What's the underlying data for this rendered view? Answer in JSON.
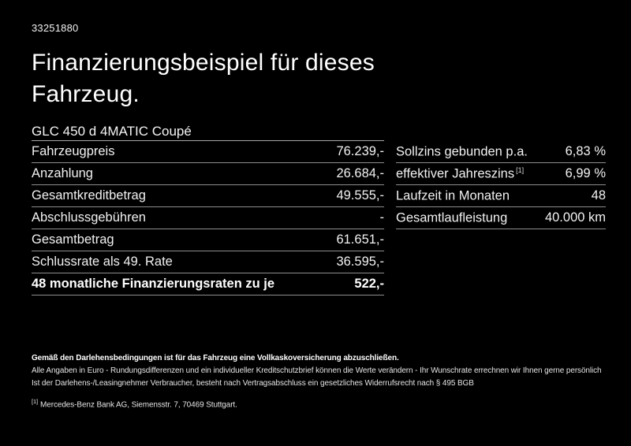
{
  "page": {
    "background_color": "#000000",
    "text_color": "#ffffff",
    "separator_color": "#8e8e8e"
  },
  "header": {
    "id_number": "33251880",
    "title_line1": "Finanzierungsbeispiel für dieses",
    "title_line2": "Fahrzeug."
  },
  "vehicle": {
    "model": "GLC 450 d 4MATIC Coupé"
  },
  "finance_table": {
    "rows": [
      {
        "label": "Fahrzeugpreis",
        "value": "76.239,-"
      },
      {
        "label": "Anzahlung",
        "value": "26.684,-"
      },
      {
        "label": "Gesamtkreditbetrag",
        "value": "49.555,-"
      },
      {
        "label": "Abschlussgebühren",
        "value": "-"
      },
      {
        "label": "Gesamtbetrag",
        "value": "61.651,-"
      },
      {
        "label": "Schlussrate als 49. Rate",
        "value": "36.595,-"
      },
      {
        "label": "48 monatliche Finanzierungsraten zu je",
        "value": "522,-"
      }
    ]
  },
  "conditions_table": {
    "rows": [
      {
        "label": "Sollzins gebunden p.a.",
        "sup": "",
        "value": "6,83 %"
      },
      {
        "label": "effektiver Jahreszins",
        "sup": "[1]",
        "value": "6,99 %"
      },
      {
        "label": "Laufzeit in Monaten",
        "sup": "",
        "value": "48"
      },
      {
        "label": "Gesamtlaufleistung",
        "sup": "",
        "value": "40.000 km"
      }
    ]
  },
  "footer": {
    "insurance_note": "Gemäß den Darlehensbedingungen ist für das Fahrzeug eine Vollkaskoversicherung abzuschließen.",
    "line2": "Alle Angaben in Euro - Rundungsdifferenzen und ein individueller Kreditschutzbrief können die Werte verändern - Ihr Wunschrate errechnen wir Ihnen gerne persönlich",
    "line3": "Ist der Darlehens-/Leasingnehmer Verbraucher, besteht nach Vertragsabschluss ein gesetzliches Widerrufsrecht nach § 495 BGB",
    "footnote_marker": "[1]",
    "footnote_text": "Mercedes-Benz Bank AG, Siemensstr. 7, 70469 Stuttgart."
  }
}
